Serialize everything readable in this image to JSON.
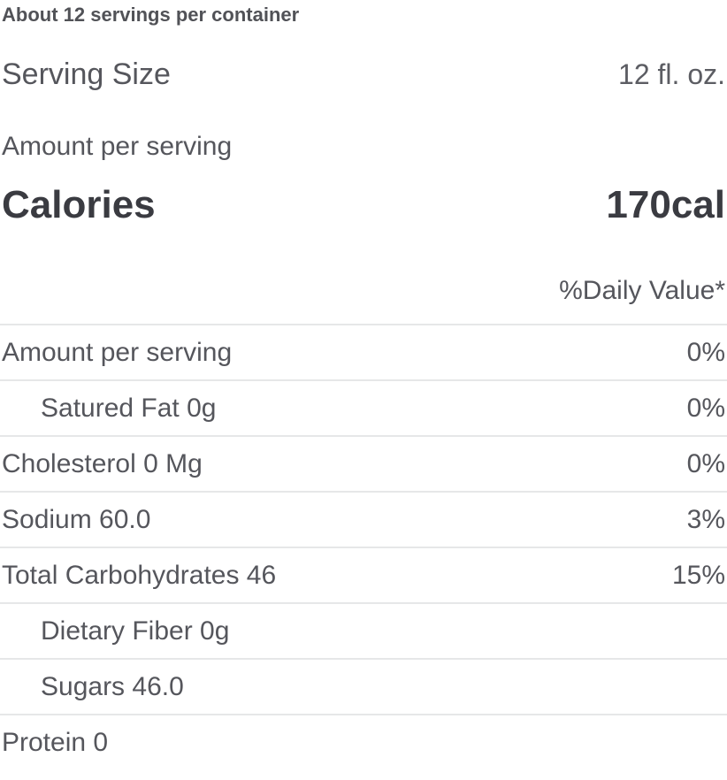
{
  "label": {
    "servings_note": "About 12 servings per container",
    "serving_size": {
      "label": "Serving Size",
      "value": "12 fl. oz."
    },
    "amount_per_serving_label": "Amount per serving",
    "calories": {
      "label": "Calories",
      "value": "170cal"
    },
    "daily_value_header": "%Daily Value*",
    "rows": [
      {
        "name": "Amount per serving",
        "dv": "0%"
      },
      {
        "name": "Satured Fat 0g",
        "dv": "0%"
      },
      {
        "name": "Cholesterol 0 Mg",
        "dv": "0%"
      },
      {
        "name": "Sodium 60.0",
        "dv": "3%"
      },
      {
        "name": "Total Carbohydrates 46",
        "dv": "15%"
      },
      {
        "name": "Dietary Fiber 0g",
        "dv": ""
      },
      {
        "name": "Sugars 46.0",
        "dv": ""
      },
      {
        "name": "Protein 0",
        "dv": ""
      }
    ],
    "colors": {
      "text": "#55565c",
      "strong_text": "#3a3b41",
      "divider": "#e6e7e8",
      "background": "#ffffff"
    }
  }
}
